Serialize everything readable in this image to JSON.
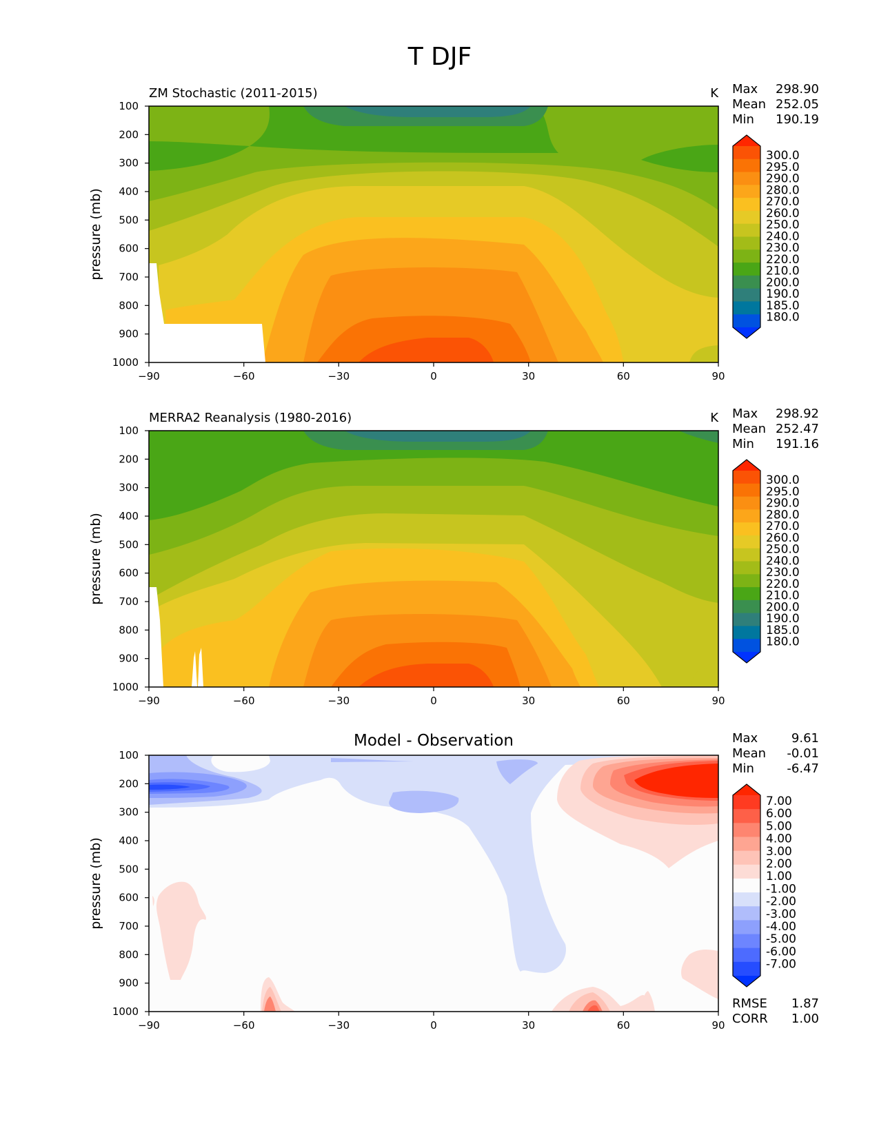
{
  "figure": {
    "title": "T DJF"
  },
  "stats_labels": {
    "max": "Max",
    "mean": "Mean",
    "min": "Min",
    "rmse": "RMSE",
    "corr": "CORR"
  },
  "colors": {
    "temperature_levels": [
      "#0033ff",
      "#0052e0",
      "#00779e",
      "#2f7f7a",
      "#3a8f4f",
      "#4aa616",
      "#7db315",
      "#a3bc18",
      "#c7c51f",
      "#e6ca26",
      "#fac020",
      "#fca61a",
      "#fb8f12",
      "#fa7305",
      "#fb5305",
      "#ff2600"
    ],
    "difference_levels": [
      "#0033ff",
      "#264dff",
      "#4d6bff",
      "#6d85ff",
      "#8da0fd",
      "#b0bdfb",
      "#d8e0fa",
      "#fcfcfc",
      "#fddcd6",
      "#fec3b7",
      "#fea592",
      "#fe8570",
      "#fe6048",
      "#ff3b21",
      "#ff2600"
    ]
  },
  "chart_data": [
    {
      "type": "heatmap",
      "title": "ZM Stochastic (2011-2015)",
      "units": "K",
      "ylabel": "pressure (mb)",
      "xlabel": "",
      "xlim": [
        -90,
        90
      ],
      "ylim": [
        1000,
        100
      ],
      "x_ticks": [
        "−90",
        "−60",
        "−30",
        "0",
        "30",
        "60",
        "90"
      ],
      "y_ticks": [
        "100",
        "200",
        "300",
        "400",
        "500",
        "600",
        "700",
        "800",
        "900",
        "1000"
      ],
      "stats": {
        "max": "298.90",
        "mean": "252.05",
        "min": "190.19"
      },
      "colorbar": {
        "levels": [
          "300.0",
          "295.0",
          "290.0",
          "280.0",
          "270.0",
          "260.0",
          "250.0",
          "240.0",
          "230.0",
          "220.0",
          "210.0",
          "200.0",
          "190.0",
          "185.0",
          "180.0"
        ],
        "extend": "both"
      },
      "approx_field": {
        "latitude": [
          -90,
          -60,
          -30,
          0,
          30,
          60,
          90
        ],
        "pressure_mb": [
          100,
          300,
          500,
          700,
          900,
          1000
        ],
        "temperature_K": [
          [
            220,
            218,
            205,
            193,
            205,
            218,
            220
          ],
          [
            215,
            222,
            232,
            233,
            228,
            220,
            215
          ],
          [
            238,
            245,
            262,
            264,
            258,
            244,
            236
          ],
          [
            250,
            256,
            274,
            280,
            272,
            256,
            250
          ],
          [
            null,
            262,
            286,
            292,
            284,
            265,
            256
          ],
          [
            null,
            264,
            290,
            298,
            289,
            268,
            258
          ]
        ]
      }
    },
    {
      "type": "heatmap",
      "title": "MERRA2 Reanalysis (1980-2016)",
      "units": "K",
      "ylabel": "pressure (mb)",
      "xlabel": "",
      "xlim": [
        -90,
        90
      ],
      "ylim": [
        1000,
        100
      ],
      "x_ticks": [
        "−90",
        "−60",
        "−30",
        "0",
        "30",
        "60",
        "90"
      ],
      "y_ticks": [
        "100",
        "200",
        "300",
        "400",
        "500",
        "600",
        "700",
        "800",
        "900",
        "1000"
      ],
      "stats": {
        "max": "298.92",
        "mean": "252.47",
        "min": "191.16"
      },
      "colorbar": {
        "levels": [
          "300.0",
          "295.0",
          "290.0",
          "280.0",
          "270.0",
          "260.0",
          "250.0",
          "240.0",
          "230.0",
          "220.0",
          "210.0",
          "200.0",
          "190.0",
          "185.0",
          "180.0"
        ],
        "extend": "both"
      },
      "approx_field": {
        "latitude": [
          -90,
          -60,
          -30,
          0,
          30,
          60,
          90
        ],
        "pressure_mb": [
          100,
          300,
          500,
          700,
          900,
          1000
        ],
        "temperature_K": [
          [
            225,
            222,
            205,
            193,
            205,
            217,
            210
          ],
          [
            222,
            228,
            232,
            233,
            228,
            222,
            215
          ],
          [
            238,
            246,
            262,
            264,
            258,
            244,
            236
          ],
          [
            250,
            256,
            274,
            280,
            272,
            256,
            250
          ],
          [
            null,
            262,
            286,
            292,
            284,
            265,
            254
          ],
          [
            null,
            264,
            290,
            298,
            289,
            268,
            256
          ]
        ]
      }
    },
    {
      "type": "heatmap",
      "title": "Model - Observation",
      "units": "",
      "ylabel": "pressure (mb)",
      "xlabel": "",
      "xlim": [
        -90,
        90
      ],
      "ylim": [
        1000,
        100
      ],
      "x_ticks": [
        "−90",
        "−60",
        "−30",
        "0",
        "30",
        "60",
        "90"
      ],
      "y_ticks": [
        "100",
        "200",
        "300",
        "400",
        "500",
        "600",
        "700",
        "800",
        "900",
        "1000"
      ],
      "stats": {
        "max": "9.61",
        "mean": "-0.01",
        "min": "-6.47",
        "rmse": "1.87",
        "corr": "1.00"
      },
      "colorbar": {
        "levels": [
          "7.00",
          "6.00",
          "5.00",
          "4.00",
          "3.00",
          "2.00",
          "1.00",
          "-1.00",
          "-2.00",
          "-3.00",
          "-4.00",
          "-5.00",
          "-6.00",
          "-7.00"
        ],
        "extend": "both"
      },
      "approx_field": {
        "latitude": [
          -90,
          -60,
          -30,
          0,
          30,
          60,
          90
        ],
        "pressure_mb": [
          200,
          300,
          600,
          800,
          1000
        ],
        "difference_K": [
          [
            -6.5,
            -3,
            -1.5,
            -1.5,
            3,
            8,
            9.6
          ],
          [
            -2,
            -1,
            0,
            -1.2,
            1.5,
            2,
            2
          ],
          [
            1.2,
            0,
            0,
            -1.2,
            0,
            0,
            0
          ],
          [
            1,
            0,
            0,
            -1.2,
            0,
            0,
            1.2
          ],
          [
            0,
            2,
            0,
            0,
            0,
            2,
            0
          ]
        ]
      }
    }
  ]
}
